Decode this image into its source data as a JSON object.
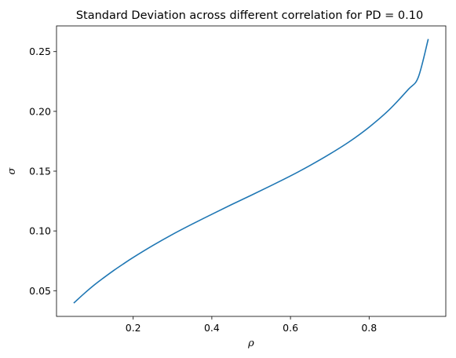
{
  "chart_data": {
    "type": "line",
    "title": "Standard Deviation across different correlation for PD = 0.10",
    "xlabel": "ρ",
    "ylabel": "σ",
    "xlim": [
      0.005,
      0.995
    ],
    "ylim": [
      0.0285,
      0.2715
    ],
    "xticks": [
      0.2,
      0.4,
      0.6,
      0.8
    ],
    "xtick_labels": [
      "0.2",
      "0.4",
      "0.6",
      "0.8"
    ],
    "yticks": [
      0.05,
      0.1,
      0.15,
      0.2,
      0.25
    ],
    "ytick_labels": [
      "0.05",
      "0.10",
      "0.15",
      "0.20",
      "0.25"
    ],
    "grid": false,
    "legend": "none",
    "series": [
      {
        "color": "#1f77b4",
        "x": [
          0.05,
          0.075,
          0.1,
          0.125,
          0.15,
          0.175,
          0.2,
          0.25,
          0.3,
          0.35,
          0.4,
          0.45,
          0.5,
          0.55,
          0.6,
          0.65,
          0.7,
          0.75,
          0.8,
          0.85,
          0.9,
          0.925,
          0.95
        ],
        "y": [
          0.04,
          0.0475,
          0.0545,
          0.0608,
          0.0668,
          0.0724,
          0.0778,
          0.0878,
          0.0971,
          0.1057,
          0.1139,
          0.122,
          0.1298,
          0.1378,
          0.146,
          0.1548,
          0.1643,
          0.1747,
          0.1868,
          0.201,
          0.2185,
          0.2285,
          0.26
        ]
      }
    ]
  }
}
